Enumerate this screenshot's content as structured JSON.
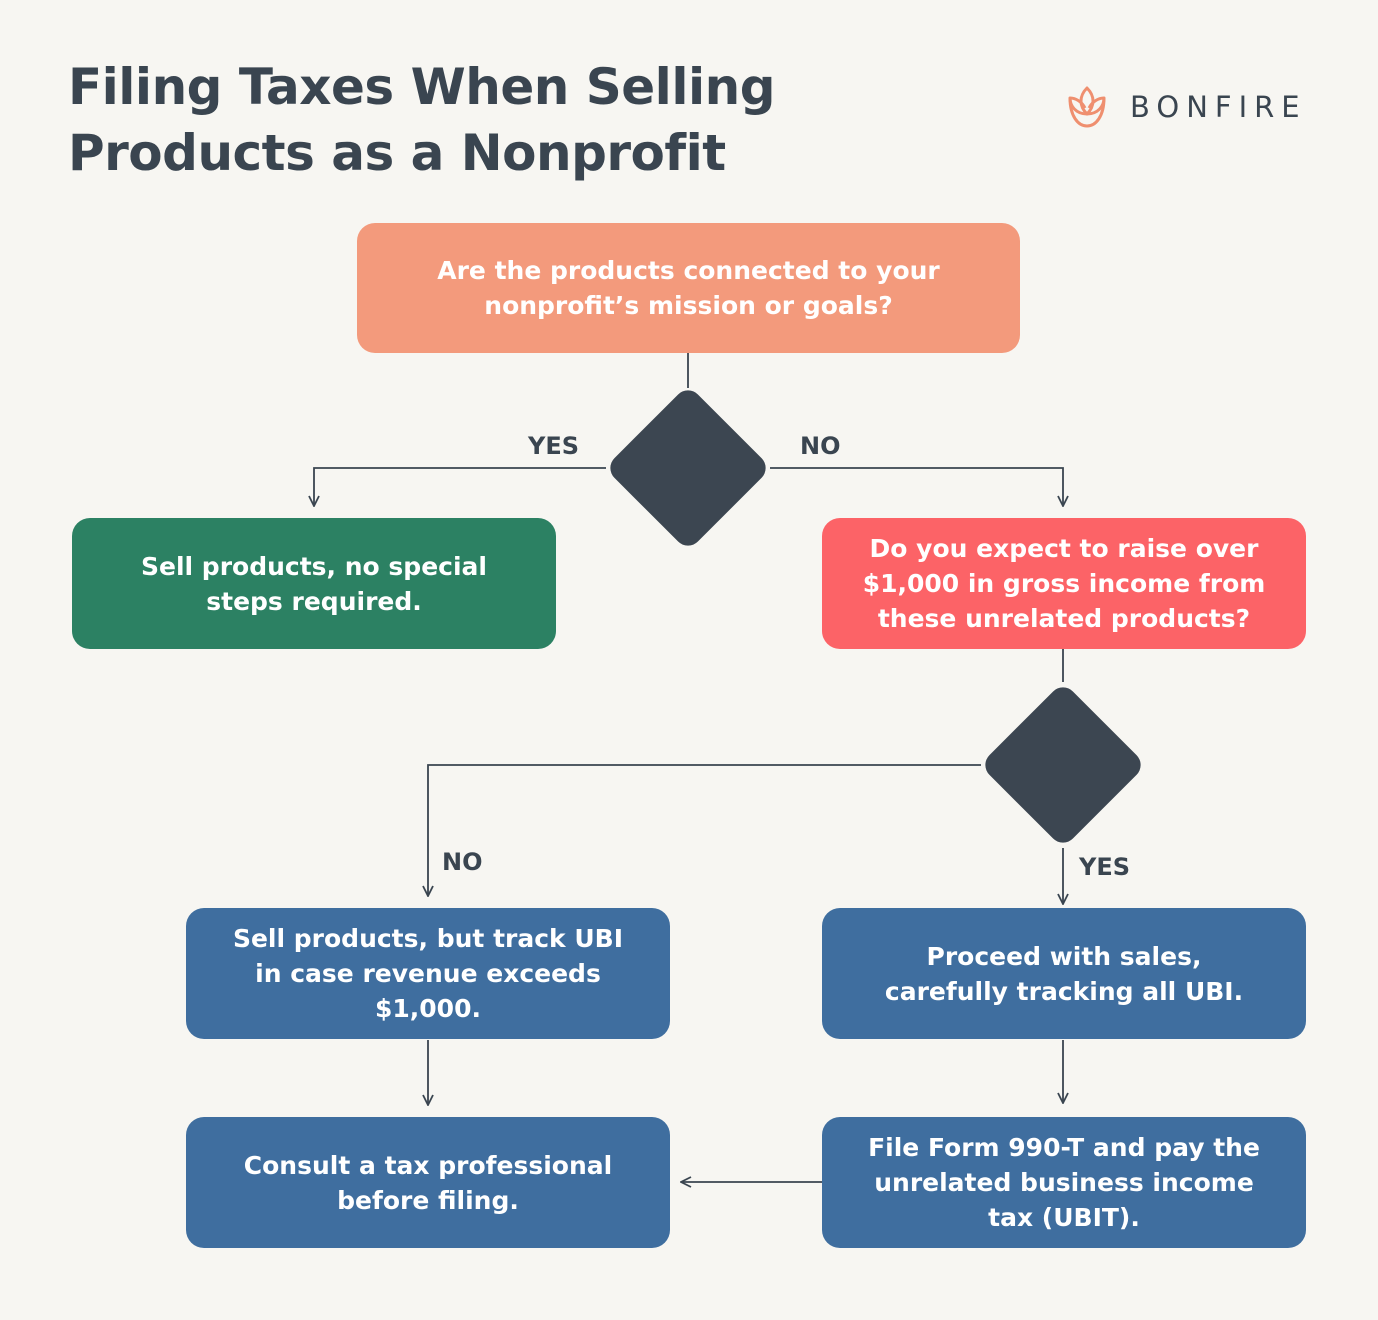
{
  "header": {
    "title_line1": "Filing Taxes When Selling",
    "title_line2": "Products as a Nonprofit",
    "brand": "BONFIRE"
  },
  "flowchart": {
    "q1": "Are the products connected to your nonprofit’s mission or goals?",
    "q1_yes_label": "YES",
    "q1_no_label": "NO",
    "yes_outcome": "Sell products, no special steps required.",
    "q2": "Do you expect to raise over $1,000 in gross income from these unrelated products?",
    "q2_no_label": "NO",
    "q2_yes_label": "YES",
    "q2_no_outcome": "Sell products, but track UBI in case revenue exceeds $1,000.",
    "q2_yes_outcome": "Proceed with sales, carefully tracking all UBI.",
    "file_step": "File Form 990-T and pay the unrelated business income tax (UBIT).",
    "consult_step": "Consult a tax professional before filing."
  },
  "colors": {
    "background": "#f7f6f2",
    "text": "#3a4550",
    "question_orange": "#f39a7c",
    "outcome_green": "#2c8163",
    "question_red": "#fc6367",
    "step_blue": "#3f6e9f",
    "decision_diamond": "#3c4651",
    "brand_accent": "#ef8f6f"
  }
}
